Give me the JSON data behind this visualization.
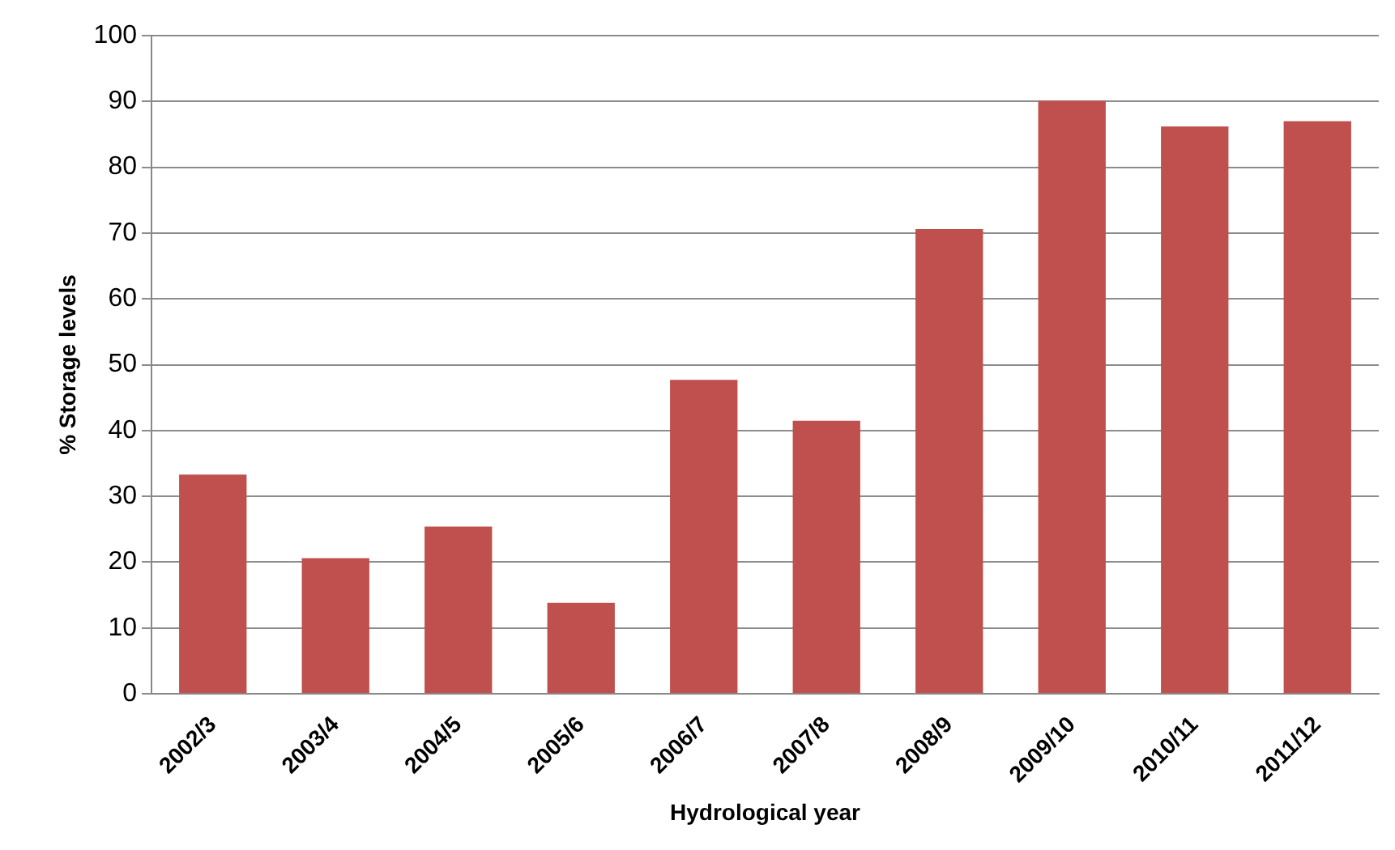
{
  "chart_data": {
    "type": "bar",
    "xlabel": "Hydrological year",
    "ylabel": "% Storage levels",
    "categories": [
      "2002/3",
      "2003/4",
      "2004/5",
      "2005/6",
      "2006/7",
      "2007/8",
      "2008/9",
      "2009/10",
      "2010/11",
      "2011/12"
    ],
    "values": [
      33.3,
      20.6,
      25.4,
      13.8,
      47.7,
      41.5,
      70.6,
      90.1,
      86.2,
      87.0
    ],
    "color": "#c0504d",
    "ylim": [
      0,
      100
    ],
    "yticks": [
      0,
      10,
      20,
      30,
      40,
      50,
      60,
      70,
      80,
      90,
      100
    ],
    "grid": "y",
    "legend": false
  }
}
